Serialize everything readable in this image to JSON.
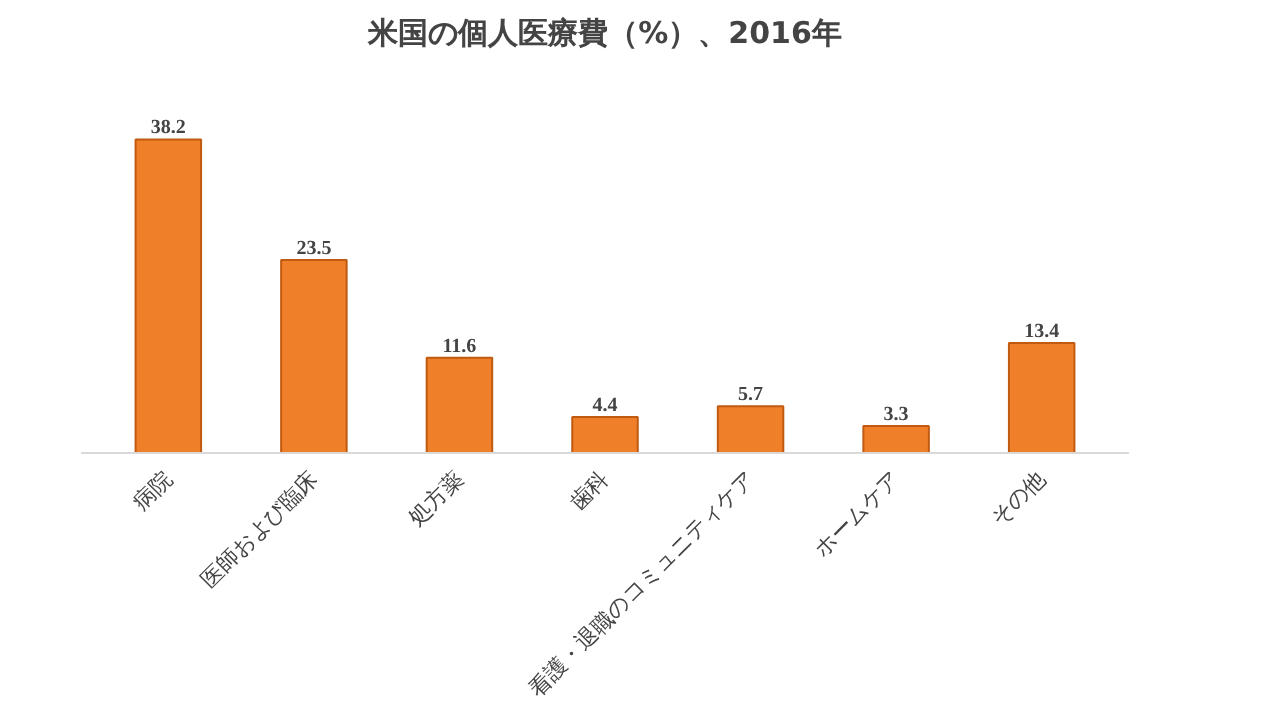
{
  "chart_data": {
    "type": "bar",
    "title": "米国の個人医療費（%）、2016年",
    "categories": [
      "病院",
      "医師および臨床",
      "処方薬",
      "歯科",
      "看護・退職のコミュニティケア",
      "ホームケア",
      "その他"
    ],
    "values": [
      38.2,
      23.5,
      11.6,
      4.4,
      5.7,
      3.3,
      13.4
    ],
    "color": "#f07f2a",
    "data_labels": true,
    "tick_labels": "x"
  }
}
